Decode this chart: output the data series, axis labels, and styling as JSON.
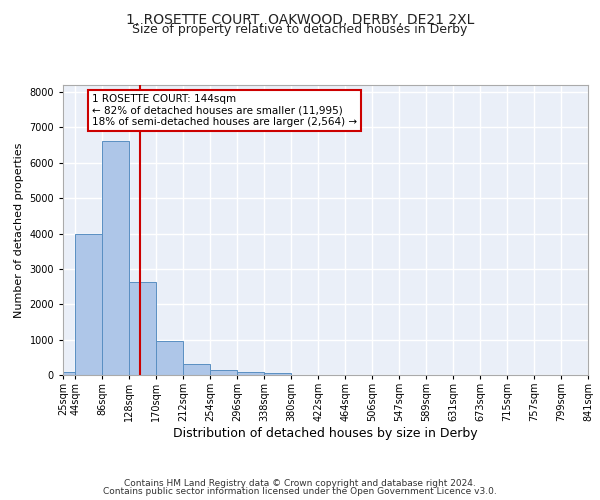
{
  "title1": "1, ROSETTE COURT, OAKWOOD, DERBY, DE21 2XL",
  "title2": "Size of property relative to detached houses in Derby",
  "xlabel": "Distribution of detached houses by size in Derby",
  "ylabel": "Number of detached properties",
  "bar_edges": [
    25,
    44,
    86,
    128,
    170,
    212,
    254,
    296,
    338,
    380,
    422,
    464,
    506,
    547,
    589,
    631,
    673,
    715,
    757,
    799,
    841
  ],
  "bar_heights": [
    80,
    3980,
    6620,
    2620,
    950,
    310,
    135,
    90,
    70,
    0,
    0,
    0,
    0,
    0,
    0,
    0,
    0,
    0,
    0,
    0
  ],
  "bar_color": "#aec6e8",
  "bar_edge_color": "#5a8fc2",
  "vline_x": 144,
  "vline_color": "#cc0000",
  "ylim": [
    0,
    8200
  ],
  "yticks": [
    0,
    1000,
    2000,
    3000,
    4000,
    5000,
    6000,
    7000,
    8000
  ],
  "annotation_text": "1 ROSETTE COURT: 144sqm\n← 82% of detached houses are smaller (11,995)\n18% of semi-detached houses are larger (2,564) →",
  "annotation_box_color": "#ffffff",
  "annotation_box_edgecolor": "#cc0000",
  "footer_line1": "Contains HM Land Registry data © Crown copyright and database right 2024.",
  "footer_line2": "Contains public sector information licensed under the Open Government Licence v3.0.",
  "bg_color": "#eaeff8",
  "grid_color": "#ffffff",
  "title1_fontsize": 10,
  "title2_fontsize": 9,
  "xlabel_fontsize": 9,
  "ylabel_fontsize": 8,
  "tick_labelsize": 7,
  "annotation_fontsize": 7.5,
  "footer_fontsize": 6.5
}
